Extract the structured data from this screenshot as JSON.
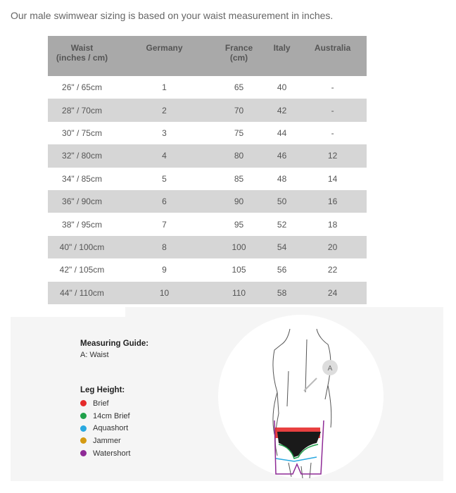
{
  "intro": "Our male swimwear sizing is based on your waist measurement in inches.",
  "table": {
    "headers": [
      [
        "Waist",
        "(inches / cm)"
      ],
      [
        "Germany",
        ""
      ],
      [
        "France",
        "(cm)"
      ],
      [
        "Italy",
        ""
      ],
      [
        "Australia",
        ""
      ]
    ],
    "rows": [
      [
        "26\" / 65cm",
        "1",
        "65",
        "40",
        "-"
      ],
      [
        "28\" / 70cm",
        "2",
        "70",
        "42",
        "-"
      ],
      [
        "30\" / 75cm",
        "3",
        "75",
        "44",
        "-"
      ],
      [
        "32\" / 80cm",
        "4",
        "80",
        "46",
        "12"
      ],
      [
        "34\" / 85cm",
        "5",
        "85",
        "48",
        "14"
      ],
      [
        "36\" / 90cm",
        "6",
        "90",
        "50",
        "16"
      ],
      [
        "38\" / 95cm",
        "7",
        "95",
        "52",
        "18"
      ],
      [
        "40\" / 100cm",
        "8",
        "100",
        "54",
        "20"
      ],
      [
        "42\" / 105cm",
        "9",
        "105",
        "56",
        "22"
      ],
      [
        "44\" / 110cm",
        "10",
        "110",
        "58",
        "24"
      ]
    ]
  },
  "guide": {
    "title": "Measuring Guide:",
    "waist": "A: Waist",
    "leg_title": "Leg Height:",
    "marker": "A",
    "legend": [
      {
        "label": "Brief",
        "color": "#e52b2b"
      },
      {
        "label": "14cm Brief",
        "color": "#1fa04a"
      },
      {
        "label": "Aquashort",
        "color": "#29a8e0"
      },
      {
        "label": "Jammer",
        "color": "#d49a12"
      },
      {
        "label": "Watershort",
        "color": "#8e2a96"
      }
    ]
  }
}
